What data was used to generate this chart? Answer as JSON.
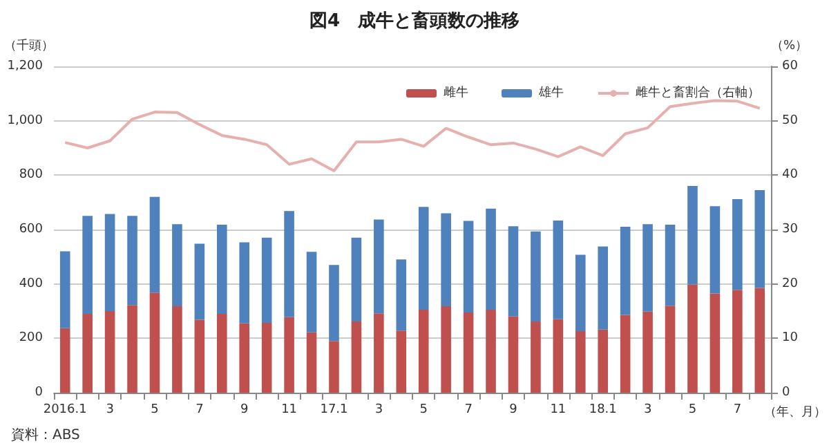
{
  "chart_data": {
    "type": "bar",
    "title": "図4　成牛と畜頭数の推移",
    "ylabel": "（千頭）",
    "y2label": "（%）",
    "xlabel": "（年、月）",
    "annotations": [
      "資料：ABS"
    ],
    "categories": [
      "2016.1",
      null,
      "3",
      null,
      "5",
      null,
      "7",
      null,
      "9",
      null,
      "11",
      null,
      "17.1",
      null,
      "3",
      null,
      "5",
      null,
      "7",
      null,
      "9",
      null,
      "11",
      null,
      "18.1",
      null,
      "3",
      null,
      "5",
      null,
      "7",
      null
    ],
    "stacked": true,
    "series": [
      {
        "name": "雌牛",
        "color": "#c0504d",
        "values": [
          237,
          290,
          300,
          322,
          368,
          318,
          268,
          290,
          255,
          257,
          278,
          222,
          190,
          262,
          292,
          228,
          305,
          318,
          295,
          305,
          280,
          262,
          270,
          226,
          232,
          286,
          298,
          320,
          398,
          365,
          378,
          385
        ]
      },
      {
        "name": "雄牛",
        "color": "#4f81bd",
        "values": [
          283,
          360,
          357,
          328,
          352,
          302,
          280,
          328,
          298,
          313,
          390,
          296,
          280,
          308,
          345,
          262,
          378,
          342,
          337,
          372,
          332,
          331,
          363,
          281,
          306,
          324,
          322,
          298,
          362,
          321,
          334,
          360
        ]
      },
      {
        "name": "雌牛と畜割合（右軸）",
        "type": "line",
        "axis": "y2",
        "color": "#e6b0ae",
        "marker": "none",
        "values": [
          46,
          45,
          46.3,
          50.3,
          51.6,
          51.5,
          49.3,
          47.3,
          46.6,
          45.6,
          42,
          43,
          40.8,
          46.1,
          46.1,
          46.6,
          45.3,
          48.6,
          47,
          45.6,
          45.9,
          44.8,
          43.4,
          45.2,
          43.6,
          47.6,
          48.7,
          52.6,
          53.2,
          53.7,
          53.6,
          52.3
        ]
      }
    ],
    "ylim": [
      0,
      1200
    ],
    "yticks": [
      0,
      200,
      400,
      600,
      800,
      {
        "value": 1000,
        "label": "1,000"
      },
      {
        "value": 1200,
        "label": "1,200"
      }
    ],
    "y2lim": [
      0,
      60
    ],
    "y2ticks": [
      0,
      10,
      20,
      30,
      40,
      50,
      60
    ],
    "grid": "y",
    "legend": "top right"
  }
}
